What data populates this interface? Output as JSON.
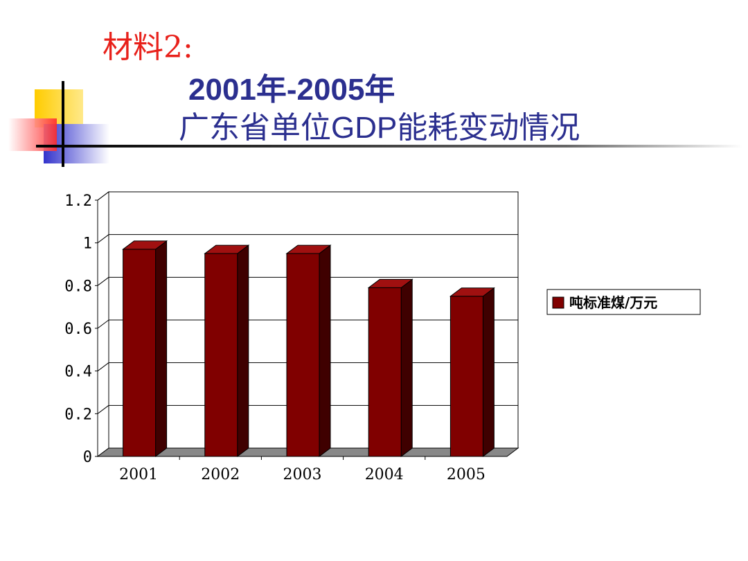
{
  "slide": {
    "label": "材料2:",
    "title_line1": "2001年-2005年",
    "title_line2": "广东省单位GDP能耗变动情况"
  },
  "colors": {
    "accent_red": "#e8201a",
    "title_blue": "#2b2f8f",
    "bar_front": "#800000",
    "bar_side": "#3f0000",
    "bar_top": "#a01010",
    "deco_yellow": "#ffcc00",
    "deco_blue": "#3333cc"
  },
  "chart_data": {
    "type": "bar",
    "categories": [
      "2001",
      "2002",
      "2003",
      "2004",
      "2005"
    ],
    "series": [
      {
        "name": "吨标准煤/万元",
        "values": [
          0.97,
          0.95,
          0.95,
          0.79,
          0.75
        ]
      }
    ],
    "ylim": [
      0,
      1.2
    ],
    "yticks": [
      "0",
      "0.2",
      "0.4",
      "0.6",
      "0.8",
      "1",
      "1.2"
    ],
    "grid": true,
    "legend_position": "right",
    "title": "",
    "xlabel": "",
    "ylabel": ""
  }
}
